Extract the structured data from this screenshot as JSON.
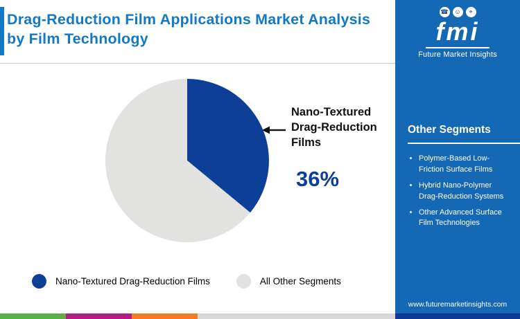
{
  "theme": {
    "title_color": "#1379c5",
    "sidebar_bg": "#1568b3",
    "pie_primary": "#0e3f97",
    "pie_secondary": "#e2e2e0"
  },
  "header": {
    "title": "Drag-Reduction Film Applications Market Analysis by Film Technology"
  },
  "chart_data": {
    "type": "pie",
    "title": "Drag-Reduction Film Applications Market Analysis by Film Technology",
    "slices": [
      {
        "label": "Nano-Textured Drag-Reduction Films",
        "value": 36,
        "color": "#0e3f97"
      },
      {
        "label": "All Other Segments",
        "value": 64,
        "color": "#e2e2e0"
      }
    ],
    "callout": {
      "label": "Nano-Textured Drag-Reduction Films",
      "value_label": "36%"
    },
    "legend_position": "bottom"
  },
  "sidebar": {
    "logo": {
      "icons": [
        {
          "name": "phone-icon",
          "glyph": "☎"
        },
        {
          "name": "person-icon",
          "glyph": "☺"
        },
        {
          "name": "location-icon",
          "glyph": "⌖"
        }
      ],
      "monogram": "fmi",
      "name": "Future Market Insights"
    },
    "heading": "Other Segments",
    "items": [
      "Polymer-Based Low-Friction Surface Films",
      "Hybrid Nano-Polymer Drag-Reduction Systems",
      "Other Advanced Surface Film Technologies"
    ],
    "website": "www.futuremarketinsights.com"
  },
  "footer_strip": {
    "colors": [
      "#5caf47",
      "#b01f83",
      "#f07e26",
      "#d8d8d6",
      "#0c3a90"
    ]
  }
}
